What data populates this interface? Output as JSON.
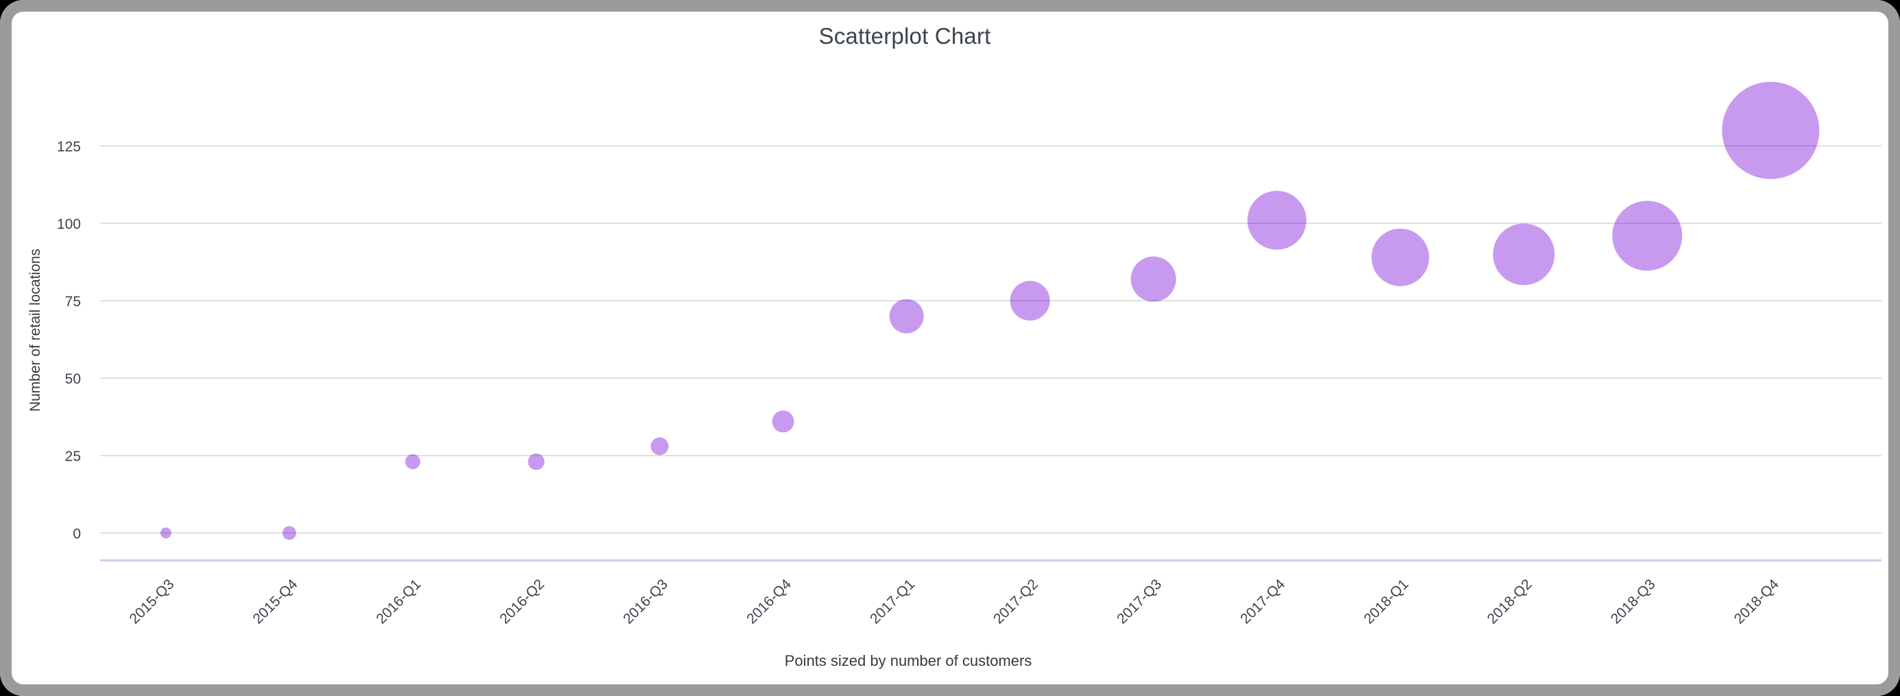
{
  "window": {
    "frame_color": "#9b9b9b",
    "background_color": "#ffffff"
  },
  "chart": {
    "point_color": "#c89aef",
    "gridline_color": "rgba(0,0,0,0.12)",
    "axis_line_color": "#c5cfe6",
    "text_color": "#3b444c"
  },
  "chart_data": {
    "type": "scatter",
    "title": "Scatterplot Chart",
    "ylabel": "Number of retail locations",
    "caption": "Points sized by number of customers",
    "sized_by": "number of customers",
    "categories": [
      "2015-Q3",
      "2015-Q4",
      "2016-Q1",
      "2016-Q2",
      "2016-Q3",
      "2016-Q4",
      "2017-Q1",
      "2017-Q2",
      "2017-Q3",
      "2017-Q4",
      "2018-Q1",
      "2018-Q2",
      "2018-Q3",
      "2018-Q4"
    ],
    "values": [
      0,
      0,
      23,
      23,
      28,
      36,
      70,
      75,
      82,
      101,
      89,
      90,
      96,
      130
    ],
    "point_radius_px": [
      8,
      10,
      11,
      12,
      13,
      16,
      25,
      29,
      33,
      43,
      42,
      45,
      51,
      71
    ],
    "y_ticks": [
      0,
      25,
      50,
      75,
      100,
      125
    ],
    "ylim": [
      0,
      134
    ],
    "grid": true,
    "legend": "none",
    "x_tick_rotation_deg": -45
  }
}
